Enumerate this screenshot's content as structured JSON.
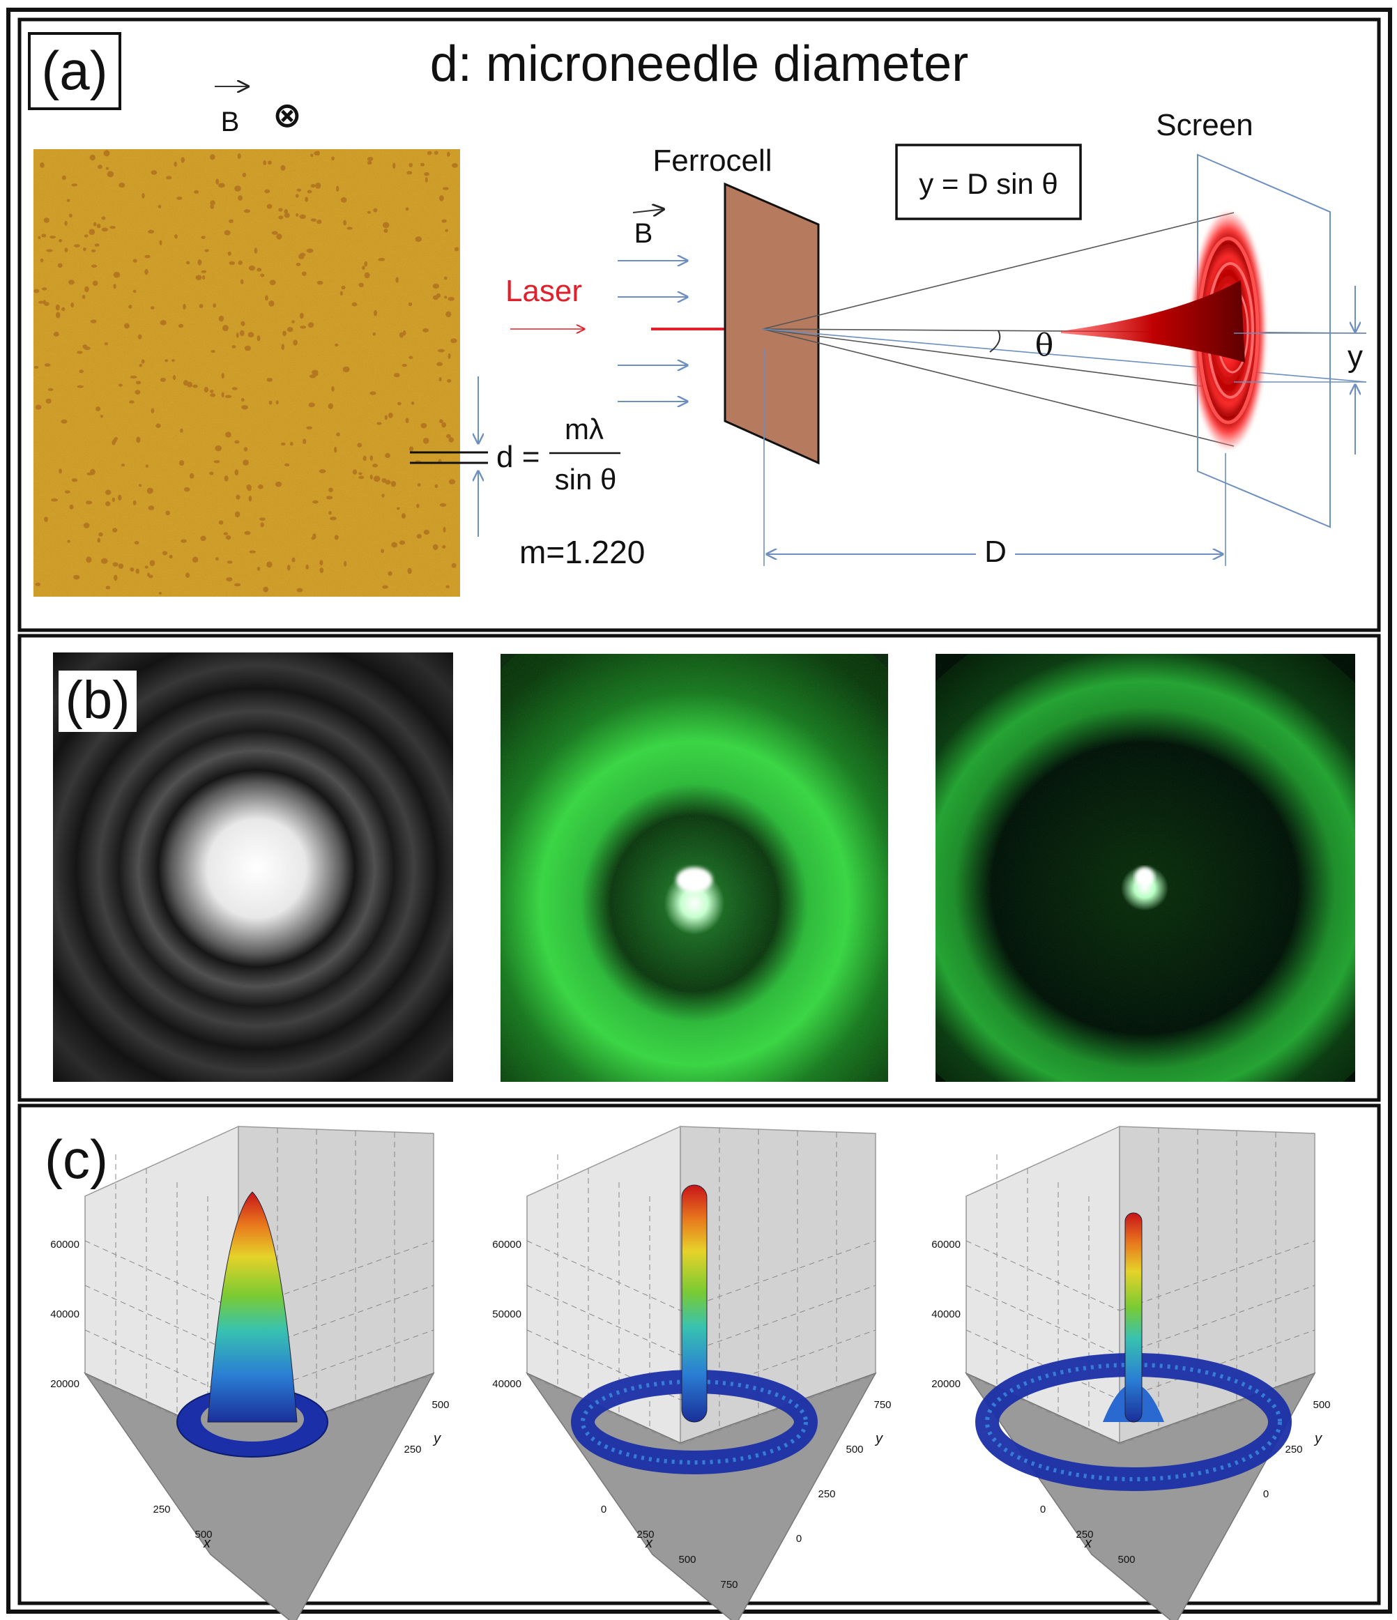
{
  "panel_a": {
    "label": "(a)",
    "title": "d: microneedle diameter",
    "field_symbol": "B",
    "field_direction_glyph": "⊗",
    "laser_label": "Laser",
    "laser_color": "#e0202a",
    "ferrocell_label": "Ferrocell",
    "ferrocell_field_symbol": "B",
    "screen_label": "Screen",
    "equation_box": "y = D sin θ",
    "angle_symbol": "θ",
    "y_dim_label": "y",
    "D_dim_label": "D",
    "d_formula": {
      "lhs": "d =",
      "numerator": "mλ",
      "denominator": "sin θ"
    },
    "m_value": "m=1.220",
    "micrograph_color": "#d6a630"
  },
  "panel_b": {
    "label": "(b)",
    "images": [
      "airy-pattern-simulated",
      "diffraction-photo-1",
      "diffraction-photo-2"
    ]
  },
  "panel_c": {
    "label": "(c)",
    "plots": [
      {
        "z_ticks": [
          "60000",
          "40000",
          "20000"
        ],
        "x_ticks": [
          "250",
          "500"
        ],
        "y_ticks": [
          "500",
          "250"
        ],
        "x_label": "x",
        "y_label": "y"
      },
      {
        "z_ticks": [
          "60000",
          "50000",
          "40000"
        ],
        "x_ticks": [
          "0",
          "250",
          "500",
          "750"
        ],
        "y_ticks": [
          "750",
          "500",
          "250",
          "0"
        ],
        "x_label": "x",
        "y_label": "y"
      },
      {
        "z_ticks": [
          "60000",
          "40000",
          "20000"
        ],
        "x_ticks": [
          "0",
          "250",
          "500"
        ],
        "y_ticks": [
          "500",
          "250",
          "0"
        ],
        "x_label": "x",
        "y_label": "y"
      }
    ]
  }
}
